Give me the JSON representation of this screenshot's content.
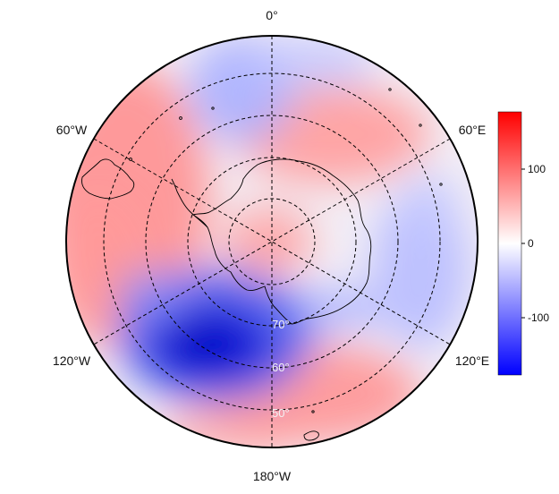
{
  "map": {
    "projection": "south-polar-stereographic",
    "longitude_labels": {
      "top": "0°",
      "upper_left": "60°W",
      "upper_right": "60°E",
      "lower_left": "120°W",
      "lower_right": "120°E",
      "bottom": "180°W"
    },
    "latitude_labels": [
      "70°",
      "60°",
      "50°"
    ],
    "graticule_style": "dashed"
  },
  "colorbar": {
    "ticks": [
      "100",
      "0",
      "-100"
    ],
    "min": -175,
    "max": 175,
    "colors": {
      "high": "#ff0000",
      "mid": "#ffffff",
      "low": "#0000ff"
    }
  },
  "field": {
    "anomalies": [
      {
        "region": "south-pacific-low",
        "value": -170
      },
      {
        "region": "west-of-peninsula-high",
        "value": 120
      },
      {
        "region": "east-antarctica-high",
        "value": 70
      },
      {
        "region": "pole-high",
        "value": 60
      },
      {
        "region": "indian-ocean-low",
        "value": -40
      },
      {
        "region": "south-of-africa-low",
        "value": -70
      },
      {
        "region": "ross-sea-high",
        "value": 90
      }
    ]
  }
}
